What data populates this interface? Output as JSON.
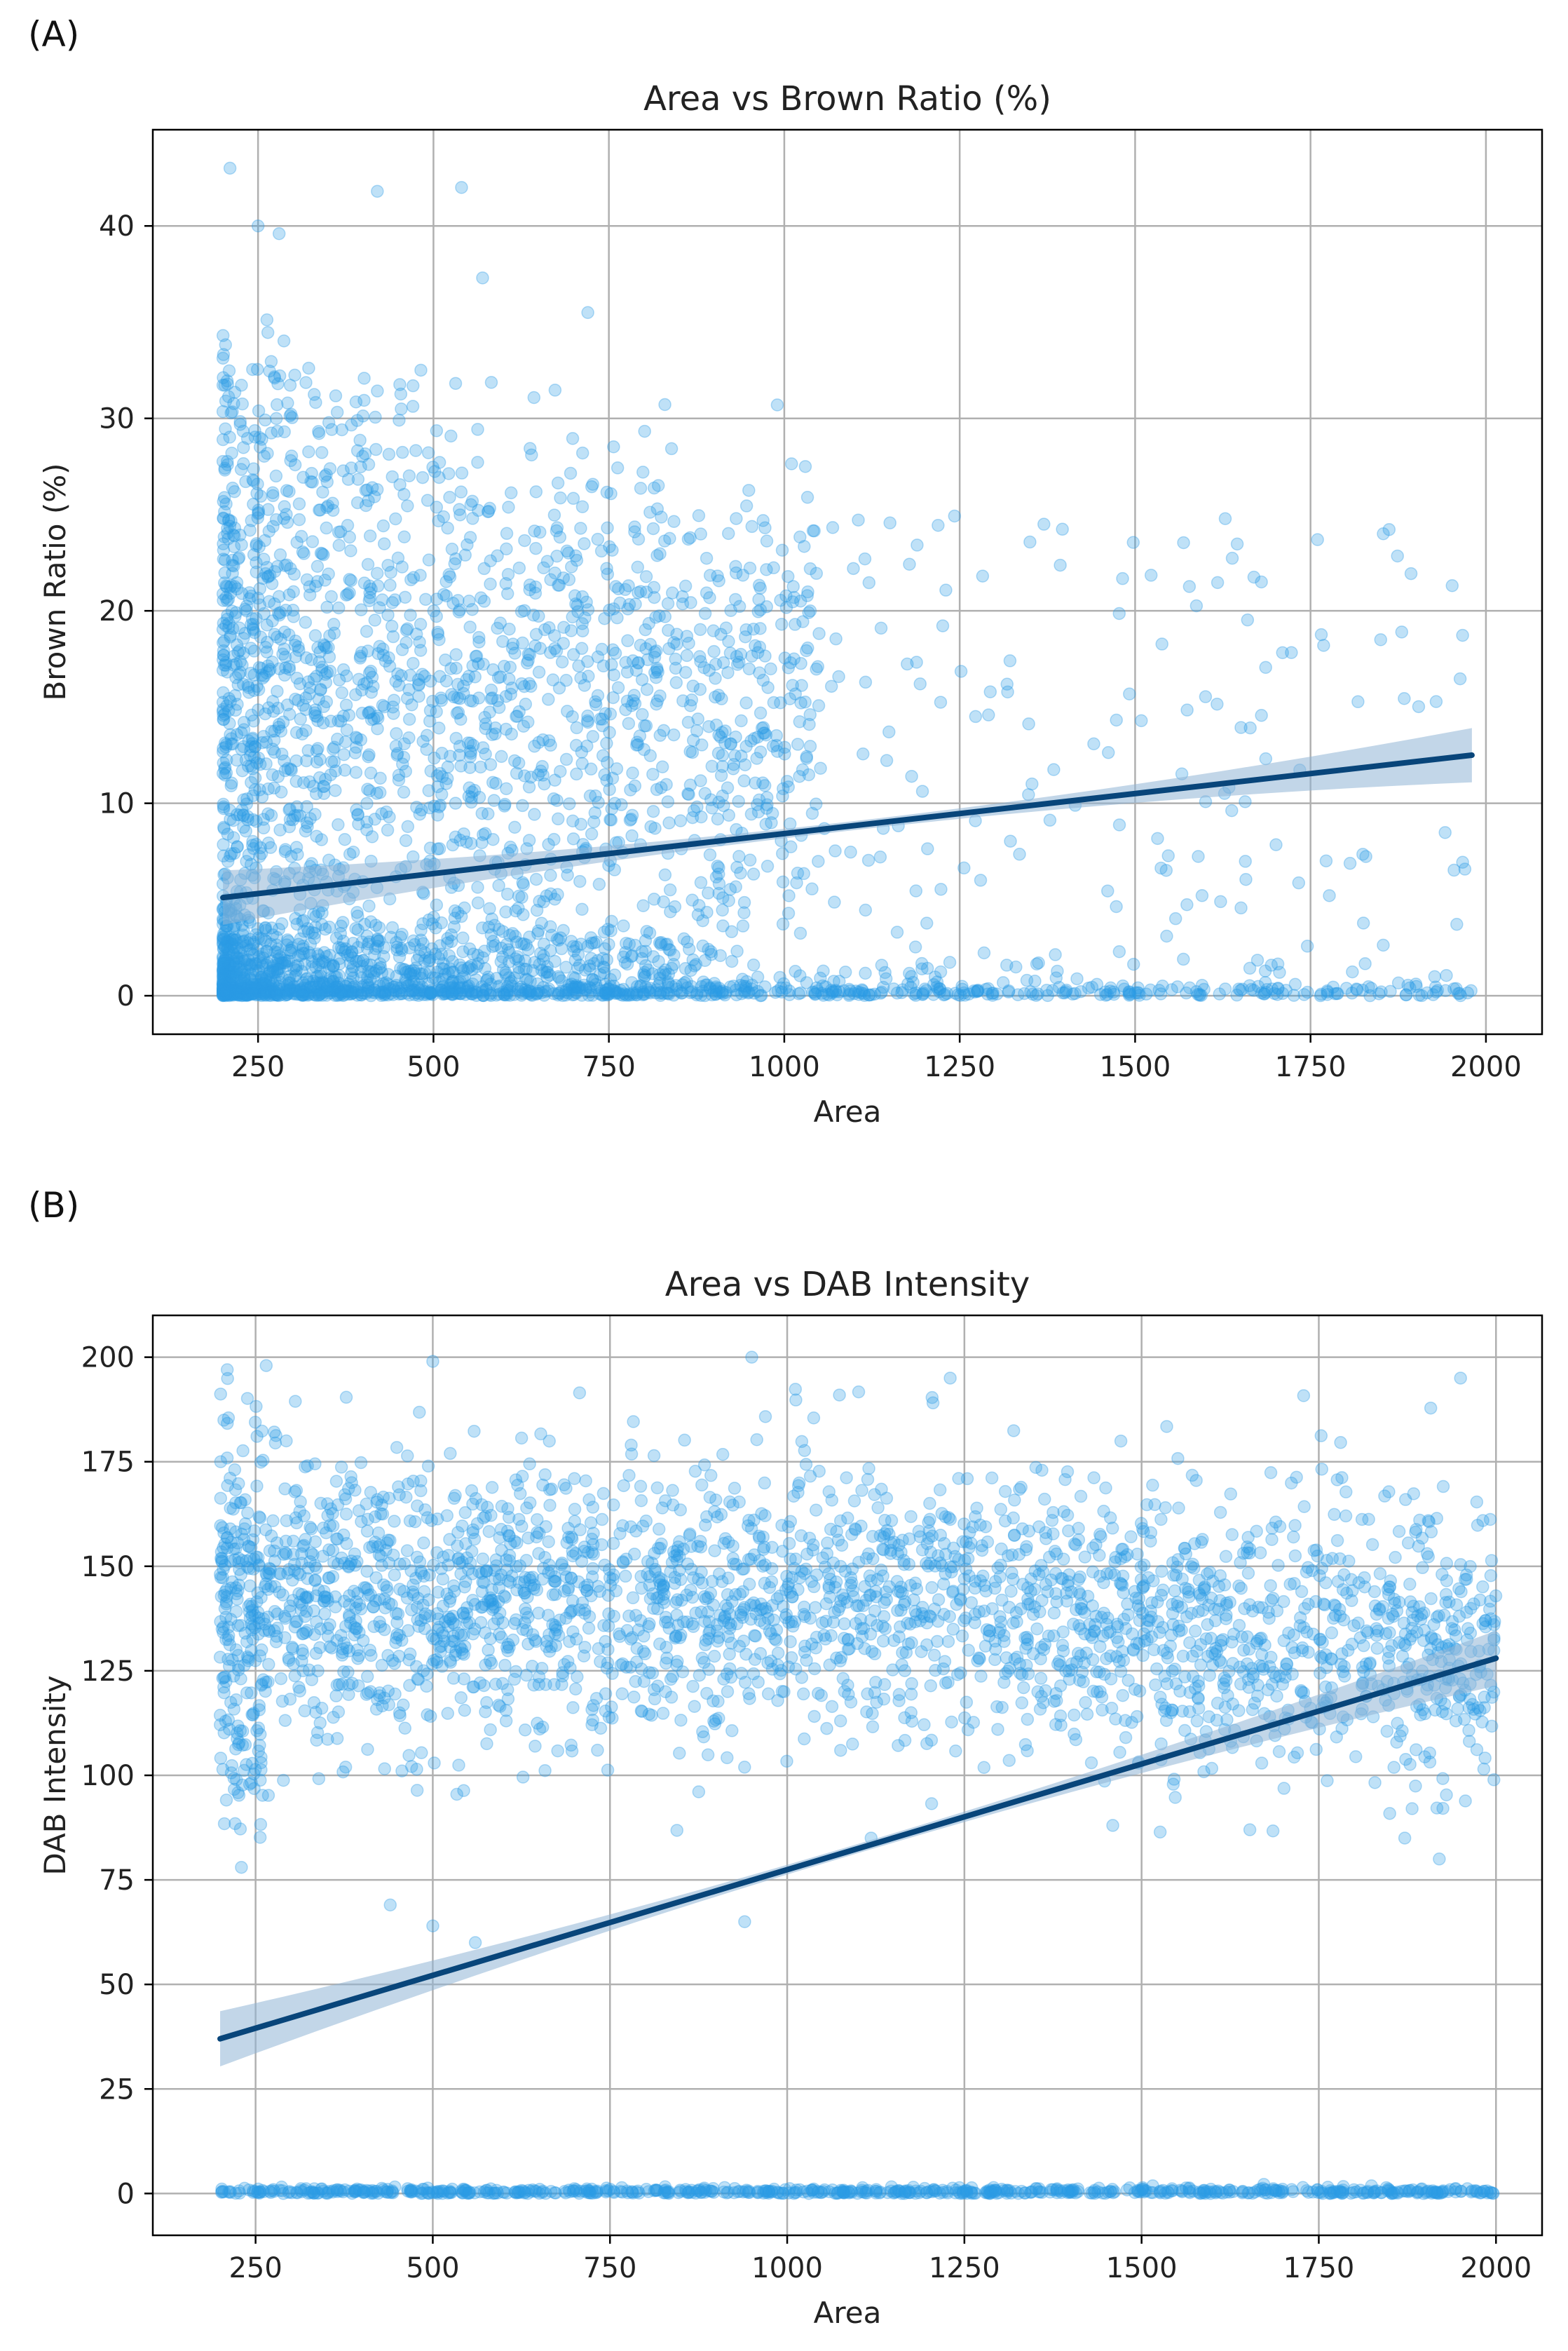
{
  "figure": {
    "panel_labels": [
      "(A)",
      "(B)"
    ]
  },
  "colors": {
    "points": "#2b9ce6",
    "fit_line": "#08457a",
    "ci_band": "#8fb5d6",
    "grid": "#b0b0b0",
    "frame": "#000000"
  },
  "chart_data": [
    {
      "type": "scatter",
      "title": "Area vs Brown Ratio (%)",
      "xlabel": "Area",
      "ylabel": "Brown Ratio (%)",
      "xlim": [
        100,
        2080
      ],
      "ylim": [
        -2,
        45
      ],
      "xticks": [
        250,
        500,
        750,
        1000,
        1250,
        1500,
        1750,
        2000
      ],
      "yticks": [
        0,
        10,
        20,
        30,
        40
      ],
      "grid": true,
      "regression": {
        "x": [
          200,
          1980
        ],
        "y": [
          5.1,
          12.5
        ]
      },
      "scatter_summary": {
        "x_range": [
          200,
          1980
        ],
        "dense_cluster": {
          "x": [
            200,
            900
          ],
          "y": [
            0,
            30
          ]
        },
        "zero_band": {
          "y": 0,
          "x": [
            200,
            1980
          ]
        },
        "max_y": 43
      },
      "notable_points": [
        [
          210,
          43
        ],
        [
          420,
          41.8
        ],
        [
          540,
          42
        ],
        [
          250,
          40
        ],
        [
          280,
          39.6
        ],
        [
          570,
          37.3
        ],
        [
          720,
          35.5
        ],
        [
          990,
          30.7
        ],
        [
          1030,
          27.5
        ],
        [
          1370,
          24.5
        ],
        [
          1760,
          23.7
        ],
        [
          1680,
          21.5
        ],
        [
          1880,
          18.9
        ],
        [
          1850,
          18.5
        ]
      ]
    },
    {
      "type": "scatter",
      "title": "Area vs DAB Intensity",
      "xlabel": "Area",
      "ylabel": "DAB Intensity",
      "xlim": [
        105,
        2065
      ],
      "ylim": [
        -10,
        210
      ],
      "xticks": [
        250,
        500,
        750,
        1000,
        1250,
        1500,
        1750,
        2000
      ],
      "yticks": [
        0,
        25,
        50,
        75,
        100,
        125,
        150,
        175,
        200
      ],
      "grid": true,
      "regression": {
        "x": [
          200,
          2000
        ],
        "y": [
          37,
          128
        ]
      },
      "scatter_summary": {
        "x_range": [
          200,
          2000
        ],
        "dense_cluster": {
          "x": [
            250,
            1500
          ],
          "y": [
            100,
            175
          ],
          "center_y": 140
        },
        "zero_band": {
          "y": 0,
          "x": [
            200,
            2000
          ]
        },
        "max_y": 200
      },
      "notable_points": [
        [
          210,
          197
        ],
        [
          265,
          198
        ],
        [
          500,
          199
        ],
        [
          950,
          200
        ],
        [
          1230,
          195
        ],
        [
          1950,
          195
        ],
        [
          560,
          60
        ],
        [
          500,
          64
        ],
        [
          940,
          65
        ],
        [
          230,
          78
        ],
        [
          1920,
          80
        ],
        [
          440,
          69
        ]
      ]
    }
  ]
}
